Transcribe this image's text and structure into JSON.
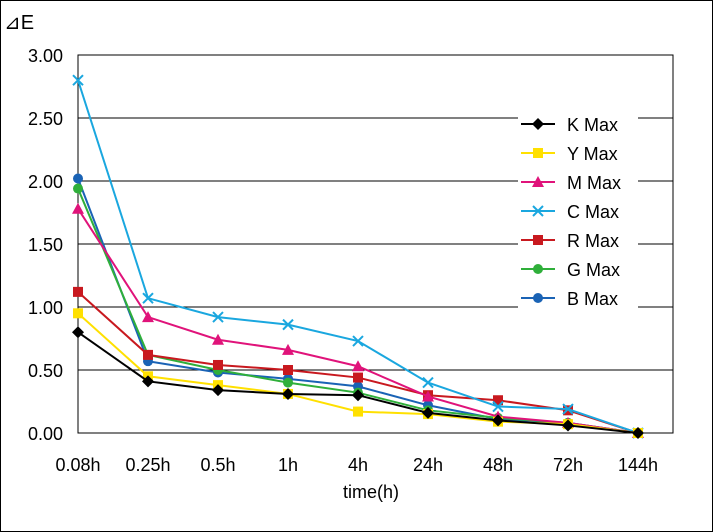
{
  "chart_data": {
    "type": "line",
    "ylabel": "⊿E",
    "xlabel": "time(h)",
    "categories": [
      "0.08h",
      "0.25h",
      "0.5h",
      "1h",
      "4h",
      "24h",
      "48h",
      "72h",
      "144h"
    ],
    "y_ticks": [
      "0.00",
      "0.50",
      "1.00",
      "1.50",
      "2.00",
      "2.50",
      "3.00"
    ],
    "ylim": [
      0,
      3
    ],
    "grid": "horizontal",
    "legend_position": "right",
    "series": [
      {
        "name": "K Max",
        "color": "#000000",
        "marker": "diamond",
        "values": [
          0.8,
          0.41,
          0.34,
          0.31,
          0.3,
          0.16,
          0.1,
          0.06,
          0.0
        ]
      },
      {
        "name": "Y Max",
        "color": "#FFE000",
        "marker": "square",
        "values": [
          0.95,
          0.45,
          0.38,
          0.31,
          0.17,
          0.15,
          0.09,
          0.07,
          0.0
        ]
      },
      {
        "name": "M Max",
        "color": "#E0137A",
        "marker": "triangle",
        "values": [
          1.78,
          0.92,
          0.74,
          0.66,
          0.53,
          0.29,
          0.13,
          0.08,
          0.0
        ]
      },
      {
        "name": "C Max",
        "color": "#1AA7DF",
        "marker": "x",
        "values": [
          2.8,
          1.07,
          0.92,
          0.86,
          0.73,
          0.4,
          0.21,
          0.19,
          0.0
        ]
      },
      {
        "name": "R Max",
        "color": "#C8191F",
        "marker": "square",
        "values": [
          1.12,
          0.62,
          0.54,
          0.5,
          0.44,
          0.3,
          0.26,
          0.18,
          0.0
        ]
      },
      {
        "name": "G Max",
        "color": "#2FAF3A",
        "marker": "circle",
        "values": [
          1.94,
          0.62,
          0.5,
          0.4,
          0.32,
          0.18,
          0.12,
          0.08,
          0.0
        ]
      },
      {
        "name": "B Max",
        "color": "#1A63B5",
        "marker": "circle",
        "values": [
          2.02,
          0.57,
          0.48,
          0.43,
          0.37,
          0.22,
          0.11,
          0.08,
          0.0
        ]
      }
    ]
  }
}
